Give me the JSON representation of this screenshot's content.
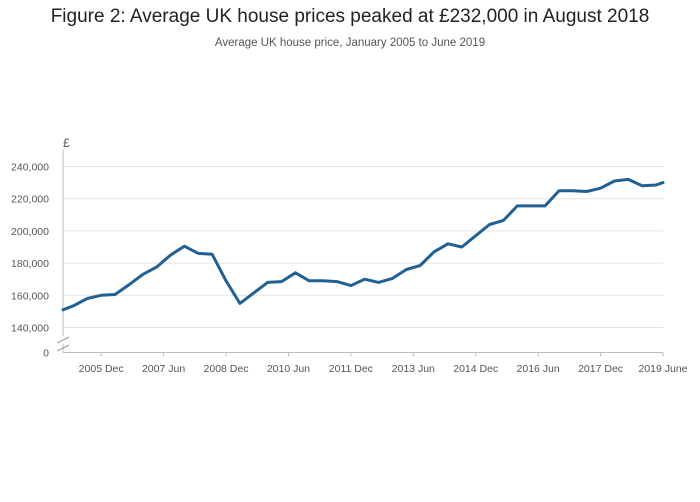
{
  "title": "Figure 2: Average UK house prices peaked at £232,000 in August 2018",
  "subtitle": "Average UK house price, January 2005 to June 2019",
  "chart_data": {
    "type": "line",
    "title": "Figure 2: Average UK house prices peaked at £232,000 in August 2018",
    "subtitle": "Average UK house price, January 2005 to June 2019",
    "y_unit_label": "£",
    "ylim": [
      140000,
      245000
    ],
    "y_axis_break": true,
    "y_ticks": [
      "240,000",
      "220,000",
      "200,000",
      "180,000",
      "160,000",
      "140,000",
      "0"
    ],
    "x_ticks": [
      "2005 Dec",
      "2007 Jun",
      "2008 Dec",
      "2010 Jun",
      "2011 Dec",
      "2013 Jun",
      "2014 Dec",
      "2016 Jun",
      "2017 Dec",
      "2019 June"
    ],
    "x_tick_months": [
      11,
      29,
      47,
      65,
      83,
      101,
      119,
      137,
      155,
      173
    ],
    "grid": true,
    "color": "#206095",
    "series": [
      {
        "x": [
          "2005-01",
          "2005-04",
          "2005-08",
          "2005-12",
          "2006-04",
          "2006-08",
          "2006-12",
          "2007-04",
          "2007-08",
          "2007-12",
          "2008-04",
          "2008-08",
          "2008-12",
          "2009-04",
          "2009-08",
          "2009-12",
          "2010-04",
          "2010-08",
          "2010-12",
          "2011-04",
          "2011-08",
          "2011-12",
          "2012-04",
          "2012-08",
          "2012-12",
          "2013-04",
          "2013-08",
          "2013-12",
          "2014-04",
          "2014-08",
          "2014-12",
          "2015-04",
          "2015-08",
          "2015-12",
          "2016-04",
          "2016-08",
          "2016-12",
          "2017-04",
          "2017-08",
          "2017-12",
          "2018-04",
          "2018-08",
          "2018-12",
          "2019-04",
          "2019-06"
        ],
        "values": [
          151000,
          153500,
          158000,
          160000,
          160500,
          166500,
          173000,
          177500,
          185000,
          190500,
          186000,
          185500,
          169000,
          155000,
          161500,
          168000,
          168500,
          174000,
          169000,
          169000,
          168500,
          166000,
          170000,
          168000,
          170500,
          176000,
          178500,
          187000,
          192000,
          190000,
          197000,
          204000,
          206500,
          215500,
          215500,
          215500,
          225000,
          225000,
          224500,
          226500,
          231000,
          232000,
          228000,
          228500,
          230000
        ]
      }
    ]
  }
}
